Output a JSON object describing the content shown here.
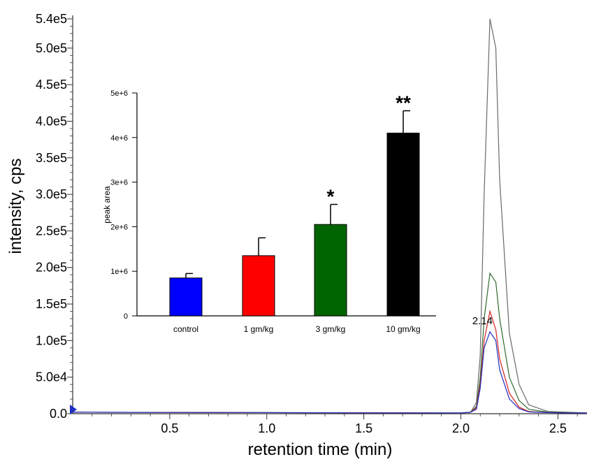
{
  "chart_data": [
    {
      "type": "line",
      "xlabel": "retention time (min)",
      "ylabel": "intensity, cps",
      "xlim": [
        0.0,
        2.65
      ],
      "ylim": [
        0,
        540000
      ],
      "x_ticks": [
        0.5,
        1.0,
        1.5,
        2.0,
        2.5
      ],
      "x_tick_labels": [
        "0.5",
        "1.0",
        "1.5",
        "2.0",
        "2.5"
      ],
      "y_ticks": [
        0,
        50000,
        100000,
        150000,
        200000,
        250000,
        300000,
        350000,
        400000,
        450000,
        500000,
        540000
      ],
      "y_tick_labels": [
        "0.0",
        "5.0e4",
        "1.0e5",
        "1.5e5",
        "2.0e5",
        "2.5e5",
        "3.0e5",
        "3.5e5",
        "4.0e5",
        "4.5e5",
        "5.0e5",
        "5.4e5"
      ],
      "annotation": {
        "text": "2.14",
        "x": 2.14,
        "y": 110000
      },
      "series": [
        {
          "name": "10 gm/kg",
          "color": "#6a6a6a",
          "x": [
            0.0,
            2.0,
            2.05,
            2.08,
            2.1,
            2.12,
            2.15,
            2.18,
            2.2,
            2.25,
            2.3,
            2.35,
            2.45,
            2.55,
            2.65
          ],
          "y": [
            2000,
            1000,
            2000,
            15000,
            80000,
            300000,
            540000,
            500000,
            320000,
            110000,
            40000,
            12000,
            3000,
            2000,
            1000
          ]
        },
        {
          "name": "3 gm/kg",
          "color": "#2e6b2e",
          "x": [
            0.0,
            2.0,
            2.05,
            2.08,
            2.1,
            2.12,
            2.15,
            2.18,
            2.2,
            2.25,
            2.3,
            2.35,
            2.45,
            2.55,
            2.65
          ],
          "y": [
            2000,
            1000,
            2000,
            10000,
            50000,
            130000,
            192000,
            180000,
            130000,
            50000,
            18000,
            6000,
            2000,
            1500,
            1000
          ]
        },
        {
          "name": "1 gm/kg",
          "color": "#d42020",
          "x": [
            0.0,
            2.0,
            2.05,
            2.08,
            2.1,
            2.12,
            2.15,
            2.18,
            2.2,
            2.25,
            2.3,
            2.35,
            2.45,
            2.55,
            2.65
          ],
          "y": [
            2000,
            1000,
            2000,
            8000,
            40000,
            100000,
            140000,
            115000,
            75000,
            28000,
            9000,
            3000,
            1500,
            1000,
            1000
          ]
        },
        {
          "name": "control",
          "color": "#1f2fbf",
          "x": [
            0.0,
            2.0,
            2.05,
            2.08,
            2.1,
            2.12,
            2.15,
            2.18,
            2.2,
            2.25,
            2.3,
            2.35,
            2.45,
            2.55,
            2.65
          ],
          "y": [
            2000,
            1000,
            2000,
            6000,
            35000,
            90000,
            112000,
            100000,
            60000,
            20000,
            7000,
            2500,
            1500,
            1000,
            1000
          ]
        }
      ]
    },
    {
      "type": "bar",
      "ylabel": "peak area",
      "ylim": [
        0,
        5000000
      ],
      "y_ticks": [
        0,
        1000000,
        2000000,
        3000000,
        4000000,
        5000000
      ],
      "y_tick_labels": [
        "0",
        "1e+6",
        "2e+6",
        "3e+6",
        "4e+6",
        "5e+6"
      ],
      "categories": [
        "control",
        "1 gm/kg",
        "3 gm/kg",
        "10 gm/kg"
      ],
      "values": [
        850000,
        1350000,
        2050000,
        4100000
      ],
      "errors": [
        100000,
        400000,
        450000,
        500000
      ],
      "colors": [
        "#0000ff",
        "#ff0000",
        "#006400",
        "#000000"
      ],
      "significance": [
        "",
        "",
        "*",
        "**"
      ]
    }
  ]
}
